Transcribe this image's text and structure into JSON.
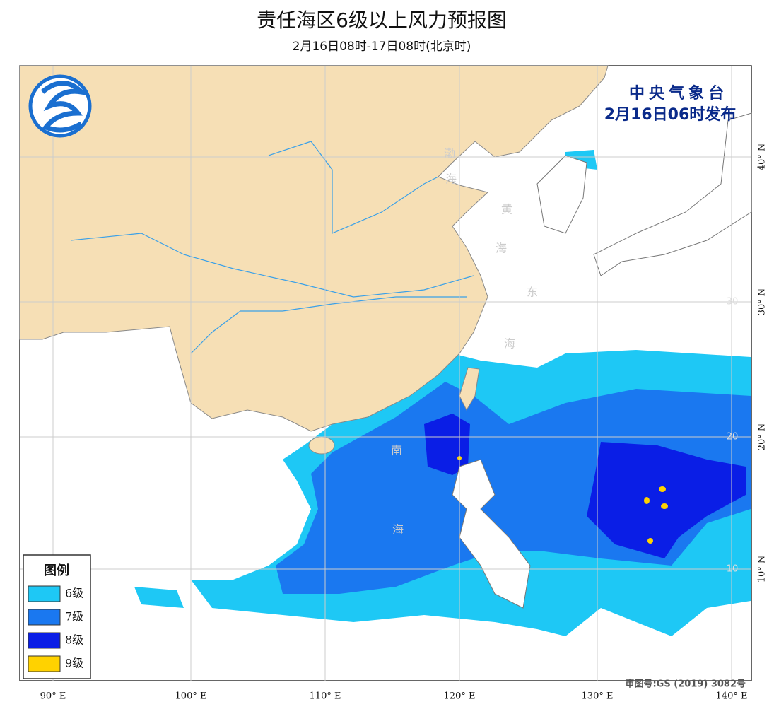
{
  "header": {
    "title": "责任海区6级以上风力预报图",
    "subtitle": "2月16日08时-17日08时(北京时)"
  },
  "issuer": {
    "name": "中央气象台",
    "time": "2月16日06时发布"
  },
  "legend": {
    "title": "图例",
    "items": [
      {
        "label": "6级",
        "color": "#1ec8f5"
      },
      {
        "label": "7级",
        "color": "#1a78f0"
      },
      {
        "label": "8级",
        "color": "#0a1ee6"
      },
      {
        "label": "9级",
        "color": "#ffd200"
      }
    ]
  },
  "sea_labels": [
    "渤",
    "海",
    "黄",
    "海",
    "东",
    "海",
    "南",
    "海"
  ],
  "map": {
    "lon_labels": [
      "90° E",
      "100° E",
      "110° E",
      "120° E",
      "130° E",
      "140° E"
    ],
    "lat_labels": [
      "40° N",
      "30° N",
      "20° N",
      "10° N"
    ],
    "inner_lat_labels": [
      "30",
      "20",
      "10"
    ]
  },
  "footer": {
    "approval": "审图号:GS (2019) 3082号"
  }
}
